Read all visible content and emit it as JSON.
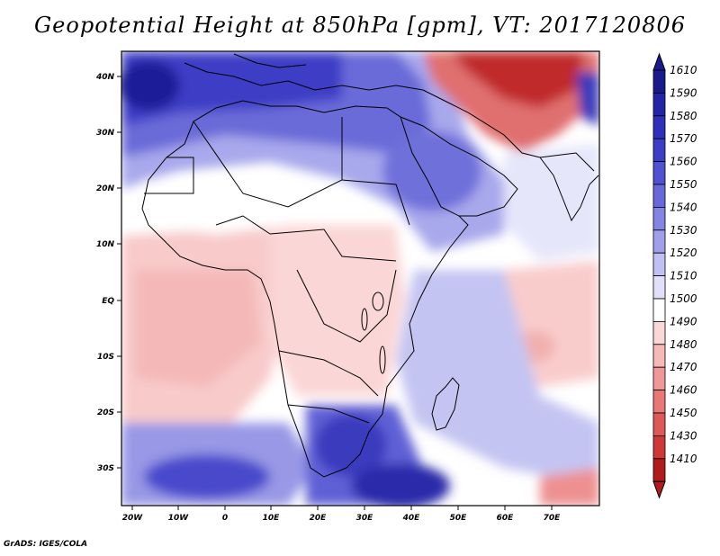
{
  "title": "Geopotential Height at 850hPa [gpm], VT: 2017120806",
  "credit": "GrADS: IGES/COLA",
  "map": {
    "lon_labels": [
      "20W",
      "10W",
      "0",
      "10E",
      "20E",
      "30E",
      "40E",
      "50E",
      "60E",
      "70E"
    ],
    "lat_labels": [
      "40N",
      "30N",
      "20N",
      "10N",
      "EQ",
      "10S",
      "20S",
      "30S"
    ]
  },
  "colorbar": {
    "levels": [
      "1610",
      "1590",
      "1580",
      "1570",
      "1560",
      "1550",
      "1540",
      "1530",
      "1520",
      "1510",
      "1500",
      "1490",
      "1480",
      "1470",
      "1460",
      "1450",
      "1430",
      "1410"
    ],
    "colors": [
      "#1a1a8c",
      "#2424a6",
      "#2f2fba",
      "#3d3dc8",
      "#5151d2",
      "#6868da",
      "#8484e2",
      "#a0a0ea",
      "#c0c0f2",
      "#e0e0fa",
      "#ffffff",
      "#fbd8d8",
      "#f7b8b8",
      "#f09898",
      "#e87878",
      "#de5858",
      "#d03838",
      "#b01c1c"
    ],
    "color_low": "#b01c1c",
    "color_high": "#1a1a8c"
  }
}
